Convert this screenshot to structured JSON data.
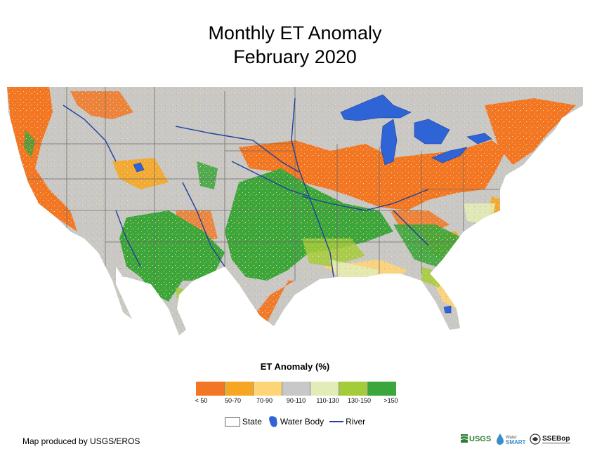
{
  "title": {
    "line1": "Monthly ET Anomaly",
    "line2": "February 2020"
  },
  "legend": {
    "title": "ET Anomaly (%)",
    "bins": [
      {
        "label": "< 50",
        "color": "#f27623"
      },
      {
        "label": "50-70",
        "color": "#f6a623"
      },
      {
        "label": "70-90",
        "color": "#fed478"
      },
      {
        "label": "90-110",
        "color": "#c8c8c8"
      },
      {
        "label": "110-130",
        "color": "#e1ecb9"
      },
      {
        "label": "130-150",
        "color": "#a3cc3a"
      },
      {
        "label": ">150",
        "color": "#3aa63c"
      }
    ]
  },
  "key": {
    "state_label": "State",
    "water_label": "Water Body",
    "river_label": "River",
    "water_color": "#2f64d6",
    "river_color": "#1e3f9e"
  },
  "credit": "Map produced by USGS/EROS",
  "logos": {
    "usgs": "USGS",
    "smart": "WaterSMART",
    "ssebop": "SSEBop"
  }
}
